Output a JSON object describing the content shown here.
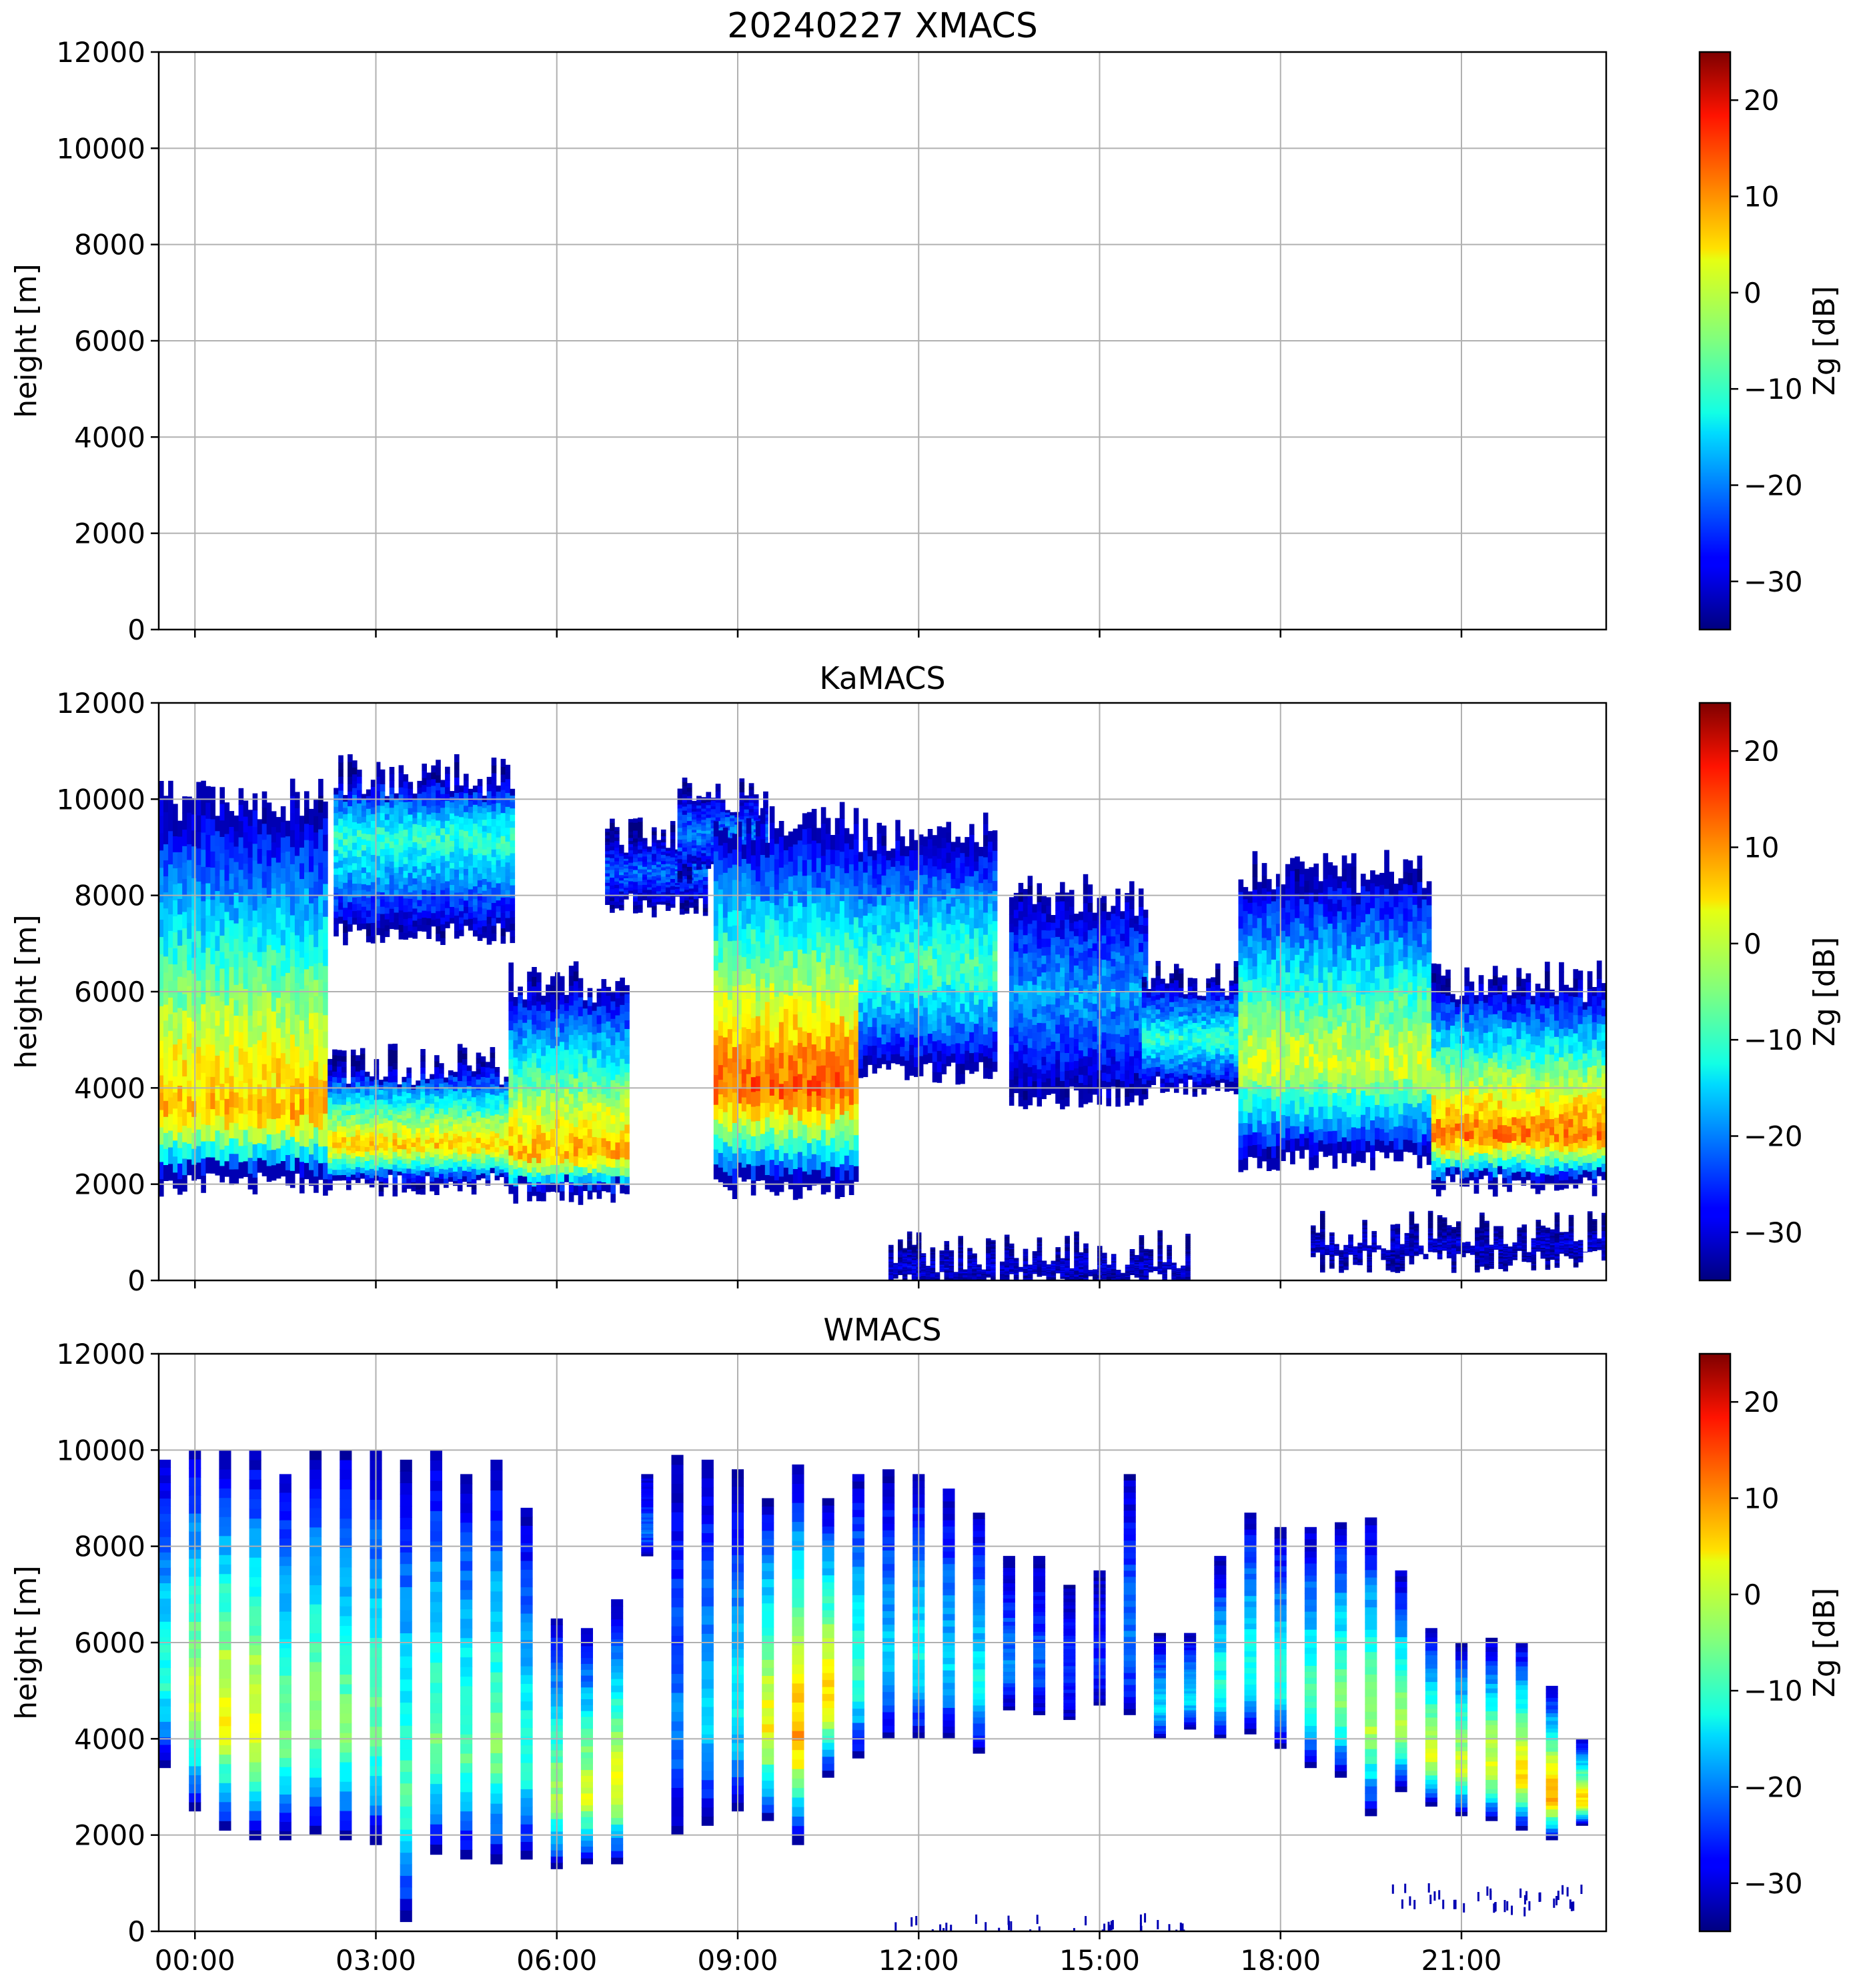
{
  "chart_data": [
    {
      "type": "heatmap",
      "title": "20240227 XMACS",
      "xlabel": "",
      "ylabel": "height [m]",
      "ylim": [
        0,
        12000
      ],
      "yticks": [
        "0",
        "2000",
        "4000",
        "6000",
        "8000",
        "10000",
        "12000"
      ],
      "xlim_hours": [
        -0.6,
        23.4
      ],
      "xticks": [
        0,
        3,
        6,
        9,
        12,
        15,
        18,
        21
      ],
      "xticklabels_visible": false,
      "grid": true,
      "colorbar": {
        "label": "Zg [dB]",
        "range": [
          -35,
          25
        ],
        "ticks": [
          "−30",
          "−20",
          "−10",
          "0",
          "10",
          "20"
        ],
        "colormap": "jet"
      },
      "echoes": []
    },
    {
      "type": "heatmap",
      "title": "KaMACS",
      "xlabel": "",
      "ylabel": "height [m]",
      "ylim": [
        0,
        12000
      ],
      "yticks": [
        "0",
        "2000",
        "4000",
        "6000",
        "8000",
        "10000",
        "12000"
      ],
      "xlim_hours": [
        -0.6,
        23.4
      ],
      "xticks": [
        0,
        3,
        6,
        9,
        12,
        15,
        18,
        21
      ],
      "xticklabels_visible": false,
      "grid": true,
      "colorbar": {
        "label": "Zg [dB]",
        "range": [
          -35,
          25
        ],
        "ticks": [
          "−30",
          "−20",
          "−10",
          "0",
          "10",
          "20"
        ],
        "colormap": "jet"
      },
      "echoes": [
        {
          "t0": -0.6,
          "t1": 2.2,
          "base": 2000,
          "top": 10000,
          "peak": 7,
          "core": 3500
        },
        {
          "t0": 2.2,
          "t1": 5.2,
          "base": 2000,
          "top": 4500,
          "peak": 5,
          "core": 2800
        },
        {
          "t0": 5.2,
          "t1": 7.2,
          "base": 1800,
          "top": 6200,
          "peak": 7,
          "core": 2600
        },
        {
          "t0": 2.3,
          "t1": 5.3,
          "base": 7200,
          "top": 10500,
          "peak": -10,
          "core": 9200
        },
        {
          "t0": 6.8,
          "t1": 8.5,
          "base": 7800,
          "top": 9200,
          "peak": -22,
          "core": 8500
        },
        {
          "t0": 8.0,
          "t1": 9.5,
          "base": 8500,
          "top": 10100,
          "peak": -20,
          "core": 9300
        },
        {
          "t0": 8.6,
          "t1": 11.0,
          "base": 1900,
          "top": 9500,
          "peak": 12,
          "core": 4000
        },
        {
          "t0": 11.0,
          "t1": 13.3,
          "base": 4300,
          "top": 9300,
          "peak": -8,
          "core": 6500
        },
        {
          "t0": 13.5,
          "t1": 15.8,
          "base": 3800,
          "top": 8000,
          "peak": -18,
          "core": 6000
        },
        {
          "t0": 15.7,
          "t1": 17.3,
          "base": 4000,
          "top": 6200,
          "peak": -10,
          "core": 5000
        },
        {
          "t0": 17.3,
          "t1": 20.5,
          "base": 2500,
          "top": 8500,
          "peak": 0,
          "core": 4500
        },
        {
          "t0": 20.5,
          "t1": 23.4,
          "base": 2000,
          "top": 6200,
          "peak": 10,
          "core": 3000
        },
        {
          "t0": 11.5,
          "t1": 16.5,
          "base": 0,
          "top": 600,
          "peak": -30,
          "core": 300
        },
        {
          "t0": 18.5,
          "t1": 23.4,
          "base": 400,
          "top": 1000,
          "peak": -30,
          "core": 800
        }
      ]
    },
    {
      "type": "heatmap",
      "title": "WMACS",
      "xlabel": "",
      "ylabel": "height [m]",
      "ylim": [
        0,
        12000
      ],
      "yticks": [
        "0",
        "2000",
        "4000",
        "6000",
        "8000",
        "10000",
        "12000"
      ],
      "xlim_hours": [
        -0.6,
        23.4
      ],
      "xticks": [
        0,
        3,
        6,
        9,
        12,
        15,
        18,
        21
      ],
      "xticklabels": [
        "00:00",
        "03:00",
        "06:00",
        "09:00",
        "12:00",
        "15:00",
        "18:00",
        "21:00"
      ],
      "xticklabels_visible": true,
      "grid": true,
      "colorbar": {
        "label": "Zg [dB]",
        "range": [
          -35,
          25
        ],
        "ticks": [
          "−30",
          "−20",
          "−10",
          "0",
          "10",
          "20"
        ],
        "colormap": "jet"
      },
      "stripes_width_hours": 0.2,
      "stripes": [
        {
          "t": -0.5,
          "base": 3400,
          "top": 9800,
          "peak": -10
        },
        {
          "t": 0.0,
          "base": 2500,
          "top": 10000,
          "peak": 0
        },
        {
          "t": 0.5,
          "base": 2100,
          "top": 10000,
          "peak": 3
        },
        {
          "t": 1.0,
          "base": 1900,
          "top": 10000,
          "peak": 2
        },
        {
          "t": 1.5,
          "base": 1900,
          "top": 9500,
          "peak": -5
        },
        {
          "t": 2.0,
          "base": 2000,
          "top": 10000,
          "peak": -3
        },
        {
          "t": 2.5,
          "base": 1900,
          "top": 10000,
          "peak": -5
        },
        {
          "t": 3.0,
          "base": 1800,
          "top": 10000,
          "peak": -6
        },
        {
          "t": 3.5,
          "base": 200,
          "top": 9800,
          "peak": -8
        },
        {
          "t": 4.0,
          "base": 1600,
          "top": 10000,
          "peak": -6
        },
        {
          "t": 4.5,
          "base": 1500,
          "top": 9500,
          "peak": -7
        },
        {
          "t": 5.0,
          "base": 1400,
          "top": 9800,
          "peak": -5
        },
        {
          "t": 5.5,
          "base": 1500,
          "top": 8800,
          "peak": -10
        },
        {
          "t": 6.0,
          "base": 1300,
          "top": 6500,
          "peak": -3
        },
        {
          "t": 6.5,
          "base": 1400,
          "top": 6300,
          "peak": 0
        },
        {
          "t": 7.0,
          "base": 1400,
          "top": 6900,
          "peak": 2
        },
        {
          "t": 7.5,
          "base": 7800,
          "top": 9500,
          "peak": -22
        },
        {
          "t": 8.0,
          "base": 2000,
          "top": 9900,
          "peak": -20
        },
        {
          "t": 8.5,
          "base": 2200,
          "top": 9800,
          "peak": -15
        },
        {
          "t": 9.0,
          "base": 2500,
          "top": 9600,
          "peak": -12
        },
        {
          "t": 9.5,
          "base": 2300,
          "top": 9000,
          "peak": 3
        },
        {
          "t": 10.0,
          "base": 1800,
          "top": 9700,
          "peak": 8
        },
        {
          "t": 10.5,
          "base": 3200,
          "top": 9000,
          "peak": 5
        },
        {
          "t": 11.0,
          "base": 3600,
          "top": 9500,
          "peak": -8
        },
        {
          "t": 11.5,
          "base": 4000,
          "top": 9600,
          "peak": -15
        },
        {
          "t": 12.0,
          "base": 4000,
          "top": 9500,
          "peak": -12
        },
        {
          "t": 12.5,
          "base": 4000,
          "top": 9200,
          "peak": -15
        },
        {
          "t": 13.0,
          "base": 3700,
          "top": 8700,
          "peak": -12
        },
        {
          "t": 13.5,
          "base": 4600,
          "top": 7800,
          "peak": -20
        },
        {
          "t": 14.0,
          "base": 4500,
          "top": 7800,
          "peak": -22
        },
        {
          "t": 14.5,
          "base": 4400,
          "top": 7200,
          "peak": -25
        },
        {
          "t": 15.0,
          "base": 4700,
          "top": 7500,
          "peak": -25
        },
        {
          "t": 15.5,
          "base": 4500,
          "top": 9500,
          "peak": -20
        },
        {
          "t": 16.0,
          "base": 4000,
          "top": 6200,
          "peak": -15
        },
        {
          "t": 16.5,
          "base": 4200,
          "top": 6200,
          "peak": -14
        },
        {
          "t": 17.0,
          "base": 4000,
          "top": 7800,
          "peak": -10
        },
        {
          "t": 17.5,
          "base": 4100,
          "top": 8700,
          "peak": -10
        },
        {
          "t": 18.0,
          "base": 3800,
          "top": 8400,
          "peak": -10
        },
        {
          "t": 18.5,
          "base": 3400,
          "top": 8400,
          "peak": -8
        },
        {
          "t": 19.0,
          "base": 3200,
          "top": 8500,
          "peak": -5
        },
        {
          "t": 19.5,
          "base": 2400,
          "top": 8600,
          "peak": -2
        },
        {
          "t": 20.0,
          "base": 2900,
          "top": 7500,
          "peak": -2
        },
        {
          "t": 20.5,
          "base": 2600,
          "top": 6300,
          "peak": 0
        },
        {
          "t": 21.0,
          "base": 2400,
          "top": 6000,
          "peak": 0
        },
        {
          "t": 21.5,
          "base": 2300,
          "top": 6100,
          "peak": 2
        },
        {
          "t": 22.0,
          "base": 2100,
          "top": 6000,
          "peak": 5
        },
        {
          "t": 22.5,
          "base": 1900,
          "top": 5100,
          "peak": 8
        },
        {
          "t": 23.0,
          "base": 2200,
          "top": 4000,
          "peak": 5
        }
      ],
      "near_ground_speckles": [
        {
          "t0": 11.5,
          "t1": 16.5,
          "base": 0,
          "top": 400
        },
        {
          "t0": 19.8,
          "t1": 23.0,
          "base": 500,
          "top": 1000
        }
      ]
    }
  ]
}
